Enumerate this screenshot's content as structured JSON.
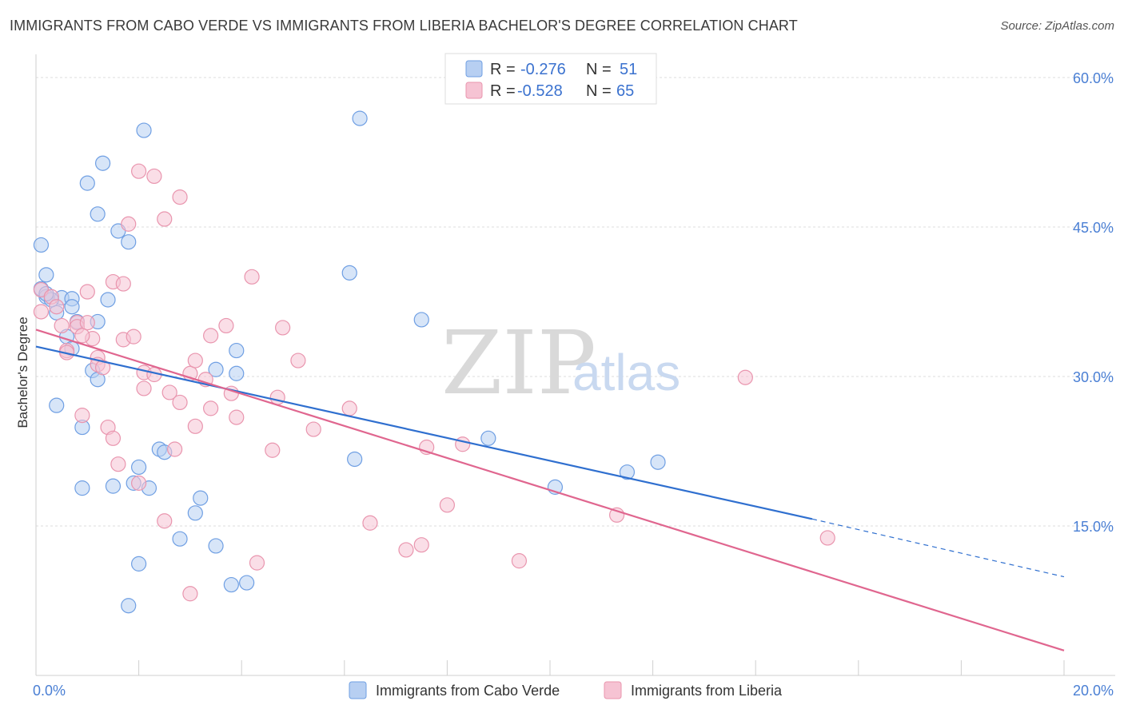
{
  "title": "IMMIGRANTS FROM CABO VERDE VS IMMIGRANTS FROM LIBERIA BACHELOR'S DEGREE CORRELATION CHART",
  "source": "Source: ZipAtlas.com",
  "watermark": {
    "zip": "ZIP",
    "atlas": "atlas"
  },
  "chart_data": {
    "type": "scatter",
    "xlabel": "",
    "ylabel": "Bachelor's Degree",
    "xlim": [
      0,
      20
    ],
    "ylim": [
      0,
      60
    ],
    "x_tick_labels": [
      {
        "v": 0,
        "label": "0.0%"
      },
      {
        "v": 20,
        "label": "20.0%"
      }
    ],
    "x_minor_ticks": [
      2,
      4,
      6,
      8,
      10,
      12,
      14,
      16,
      18,
      20
    ],
    "y_ticks": [
      {
        "v": 15,
        "label": "15.0%"
      },
      {
        "v": 30,
        "label": "30.0%"
      },
      {
        "v": 45,
        "label": "45.0%"
      },
      {
        "v": 60,
        "label": "60.0%"
      }
    ],
    "legend": [
      {
        "r_label": "R =",
        "r_value": "-0.276",
        "n_label": "N =",
        "n_value": "51"
      },
      {
        "r_label": "R =",
        "r_value": "-0.528",
        "n_label": "N =",
        "n_value": "65"
      }
    ],
    "series": [
      {
        "name": "Immigrants from Cabo Verde",
        "color": "#6f9fe3",
        "fill": "#b7cff2",
        "line_color": "#2f6fcf",
        "trend": {
          "x0": 0,
          "y0": 33.0,
          "x1": 15.1,
          "y1": 15.7,
          "dash_to_x": 20,
          "dash_to_y": 9.9
        },
        "points": [
          [
            0.1,
            43.2
          ],
          [
            0.2,
            40.2
          ],
          [
            0.1,
            38.8
          ],
          [
            0.2,
            38.0
          ],
          [
            0.4,
            36.4
          ],
          [
            0.5,
            37.9
          ],
          [
            0.7,
            37.8
          ],
          [
            0.7,
            37.0
          ],
          [
            0.6,
            34.0
          ],
          [
            0.7,
            32.8
          ],
          [
            0.8,
            35.5
          ],
          [
            1.2,
            35.5
          ],
          [
            1.4,
            37.7
          ],
          [
            1.1,
            30.6
          ],
          [
            1.2,
            29.7
          ],
          [
            0.4,
            27.1
          ],
          [
            0.9,
            24.9
          ],
          [
            0.9,
            18.8
          ],
          [
            1.5,
            19.0
          ],
          [
            1.9,
            19.3
          ],
          [
            2.0,
            20.9
          ],
          [
            2.2,
            18.8
          ],
          [
            2.4,
            22.7
          ],
          [
            2.5,
            22.4
          ],
          [
            2.8,
            13.7
          ],
          [
            3.2,
            17.8
          ],
          [
            3.1,
            16.3
          ],
          [
            3.5,
            13.0
          ],
          [
            3.8,
            9.1
          ],
          [
            4.1,
            9.3
          ],
          [
            2.0,
            11.2
          ],
          [
            1.8,
            7.0
          ],
          [
            3.5,
            30.7
          ],
          [
            3.9,
            32.6
          ],
          [
            3.9,
            30.3
          ],
          [
            1.0,
            49.4
          ],
          [
            1.3,
            51.4
          ],
          [
            1.2,
            46.3
          ],
          [
            1.6,
            44.6
          ],
          [
            1.8,
            43.5
          ],
          [
            2.1,
            54.7
          ],
          [
            6.3,
            55.9
          ],
          [
            6.1,
            40.4
          ],
          [
            7.5,
            35.7
          ],
          [
            6.2,
            21.7
          ],
          [
            8.8,
            23.8
          ],
          [
            10.1,
            18.9
          ],
          [
            11.5,
            20.4
          ],
          [
            12.1,
            21.4
          ],
          [
            0.3,
            37.7
          ],
          [
            0.2,
            38.3
          ]
        ]
      },
      {
        "name": "Immigrants from Liberia",
        "color": "#e995ae",
        "fill": "#f6c3d3",
        "line_color": "#e0668f",
        "trend": {
          "x0": 0,
          "y0": 34.7,
          "x1": 20,
          "y1": 2.5
        },
        "points": [
          [
            0.1,
            38.7
          ],
          [
            0.1,
            36.5
          ],
          [
            0.3,
            38.0
          ],
          [
            0.5,
            35.1
          ],
          [
            0.6,
            32.6
          ],
          [
            0.6,
            32.4
          ],
          [
            0.8,
            35.4
          ],
          [
            0.8,
            35.0
          ],
          [
            1.0,
            38.5
          ],
          [
            1.0,
            35.4
          ],
          [
            1.1,
            33.8
          ],
          [
            1.2,
            31.9
          ],
          [
            1.2,
            31.2
          ],
          [
            1.3,
            30.9
          ],
          [
            1.5,
            39.5
          ],
          [
            1.7,
            39.3
          ],
          [
            1.7,
            33.7
          ],
          [
            1.9,
            34.0
          ],
          [
            2.1,
            30.4
          ],
          [
            2.1,
            28.8
          ],
          [
            2.3,
            30.2
          ],
          [
            2.6,
            28.4
          ],
          [
            2.8,
            27.4
          ],
          [
            3.0,
            30.3
          ],
          [
            3.1,
            31.6
          ],
          [
            3.3,
            29.7
          ],
          [
            3.4,
            26.8
          ],
          [
            3.4,
            34.1
          ],
          [
            3.7,
            35.1
          ],
          [
            3.8,
            28.3
          ],
          [
            3.9,
            25.9
          ],
          [
            3.1,
            25.0
          ],
          [
            0.9,
            26.1
          ],
          [
            1.4,
            24.9
          ],
          [
            1.5,
            23.8
          ],
          [
            1.6,
            21.2
          ],
          [
            2.0,
            19.3
          ],
          [
            2.5,
            15.5
          ],
          [
            2.7,
            22.7
          ],
          [
            3.0,
            8.2
          ],
          [
            4.2,
            40.0
          ],
          [
            4.3,
            11.3
          ],
          [
            4.6,
            22.6
          ],
          [
            4.7,
            27.9
          ],
          [
            4.8,
            34.9
          ],
          [
            5.1,
            31.6
          ],
          [
            5.4,
            24.7
          ],
          [
            6.1,
            26.8
          ],
          [
            6.5,
            15.3
          ],
          [
            7.2,
            12.6
          ],
          [
            7.5,
            13.1
          ],
          [
            7.6,
            22.9
          ],
          [
            8.0,
            17.1
          ],
          [
            8.3,
            23.2
          ],
          [
            9.4,
            11.5
          ],
          [
            11.3,
            16.1
          ],
          [
            13.8,
            29.9
          ],
          [
            15.4,
            13.8
          ],
          [
            2.0,
            50.6
          ],
          [
            2.3,
            50.1
          ],
          [
            2.8,
            48.0
          ],
          [
            2.5,
            45.8
          ],
          [
            1.8,
            45.3
          ],
          [
            0.9,
            34.1
          ],
          [
            0.4,
            37.0
          ]
        ]
      }
    ]
  }
}
